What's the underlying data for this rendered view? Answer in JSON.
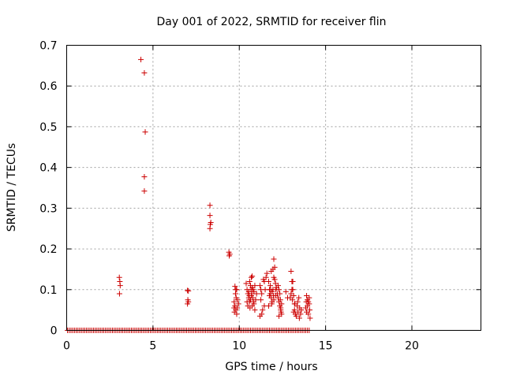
{
  "chart_data": {
    "type": "scatter",
    "title": "Day 001 of 2022, SRMTID for receiver flin",
    "xlabel": "GPS time / hours",
    "ylabel": "SRMTID / TECUs",
    "xlim": [
      0,
      24
    ],
    "ylim": [
      0,
      0.7
    ],
    "xticks": [
      0,
      5,
      10,
      15,
      20
    ],
    "yticks": [
      0,
      0.1,
      0.2,
      0.3,
      0.4,
      0.5,
      0.6,
      0.7
    ],
    "xtick_labels": [
      "0",
      "5",
      "10",
      "15",
      "20"
    ],
    "ytick_labels": [
      "0",
      "0.1",
      "0.2",
      "0.3",
      "0.4",
      "0.5",
      "0.6",
      "0.7"
    ],
    "grid": true,
    "marker": "+",
    "series": [
      {
        "name": "SRMTID",
        "color": "#cc0000",
        "zero_baseline": {
          "x_start": 0.05,
          "x_end": 14.1,
          "step": 0.1,
          "y": 0
        },
        "points": [
          [
            3.05,
            0.13
          ],
          [
            3.08,
            0.12
          ],
          [
            3.1,
            0.11
          ],
          [
            3.06,
            0.09
          ],
          [
            4.3,
            0.665
          ],
          [
            4.5,
            0.632
          ],
          [
            4.55,
            0.487
          ],
          [
            4.5,
            0.377
          ],
          [
            4.5,
            0.342
          ],
          [
            7.0,
            0.098
          ],
          [
            7.05,
            0.097
          ],
          [
            7.02,
            0.075
          ],
          [
            7.05,
            0.07
          ],
          [
            7.0,
            0.065
          ],
          [
            8.3,
            0.307
          ],
          [
            8.3,
            0.282
          ],
          [
            8.35,
            0.265
          ],
          [
            8.32,
            0.26
          ],
          [
            8.3,
            0.25
          ],
          [
            9.4,
            0.192
          ],
          [
            9.45,
            0.187
          ],
          [
            9.42,
            0.183
          ],
          [
            9.75,
            0.108
          ],
          [
            9.8,
            0.1
          ],
          [
            9.78,
            0.09
          ],
          [
            9.82,
            0.08
          ],
          [
            9.85,
            0.1
          ],
          [
            9.7,
            0.07
          ],
          [
            9.75,
            0.06
          ],
          [
            9.8,
            0.05
          ],
          [
            9.72,
            0.045
          ],
          [
            9.85,
            0.04
          ],
          [
            9.9,
            0.075
          ],
          [
            9.95,
            0.065
          ],
          [
            9.7,
            0.055
          ],
          [
            9.88,
            0.055
          ],
          [
            10.4,
            0.115
          ],
          [
            10.45,
            0.1
          ],
          [
            10.5,
            0.09
          ],
          [
            10.55,
            0.08
          ],
          [
            10.6,
            0.07
          ],
          [
            10.65,
            0.11
          ],
          [
            10.7,
            0.085
          ],
          [
            10.75,
            0.06
          ],
          [
            10.8,
            0.1
          ],
          [
            10.85,
            0.095
          ],
          [
            10.9,
            0.05
          ],
          [
            10.5,
            0.06
          ],
          [
            10.55,
            0.095
          ],
          [
            10.6,
            0.12
          ],
          [
            10.7,
            0.13
          ],
          [
            10.75,
            0.105
          ],
          [
            10.95,
            0.075
          ],
          [
            11.0,
            0.09
          ],
          [
            10.45,
            0.07
          ],
          [
            10.85,
            0.065
          ],
          [
            10.65,
            0.075
          ],
          [
            10.72,
            0.09
          ],
          [
            10.78,
            0.08
          ],
          [
            10.58,
            0.085
          ],
          [
            10.82,
            0.07
          ],
          [
            10.9,
            0.11
          ],
          [
            10.62,
            0.055
          ],
          [
            10.68,
            0.1
          ],
          [
            10.75,
            0.133
          ],
          [
            11.2,
            0.11
          ],
          [
            11.25,
            0.1
          ],
          [
            11.3,
            0.09
          ],
          [
            11.35,
            0.05
          ],
          [
            11.2,
            0.035
          ],
          [
            11.3,
            0.04
          ],
          [
            11.4,
            0.125
          ],
          [
            11.45,
            0.12
          ],
          [
            11.5,
            0.1
          ],
          [
            11.55,
            0.13
          ],
          [
            11.6,
            0.14
          ],
          [
            11.25,
            0.075
          ],
          [
            11.45,
            0.06
          ],
          [
            11.7,
            0.12
          ],
          [
            11.75,
            0.1
          ],
          [
            11.8,
            0.09
          ],
          [
            11.85,
            0.08
          ],
          [
            11.9,
            0.07
          ],
          [
            11.95,
            0.15
          ],
          [
            12.0,
            0.175
          ],
          [
            12.05,
            0.155
          ],
          [
            11.7,
            0.06
          ],
          [
            11.8,
            0.11
          ],
          [
            11.9,
            0.095
          ],
          [
            12.0,
            0.13
          ],
          [
            12.05,
            0.125
          ],
          [
            12.1,
            0.115
          ],
          [
            12.15,
            0.105
          ],
          [
            12.2,
            0.09
          ],
          [
            11.85,
            0.145
          ],
          [
            11.95,
            0.1
          ],
          [
            12.1,
            0.085
          ],
          [
            12.0,
            0.075
          ],
          [
            11.75,
            0.085
          ],
          [
            11.88,
            0.065
          ],
          [
            12.12,
            0.1
          ],
          [
            11.82,
            0.1
          ],
          [
            11.98,
            0.085
          ],
          [
            12.25,
            0.08
          ],
          [
            12.3,
            0.07
          ],
          [
            12.35,
            0.06
          ],
          [
            12.4,
            0.05
          ],
          [
            12.45,
            0.04
          ],
          [
            12.3,
            0.1
          ],
          [
            12.35,
            0.09
          ],
          [
            12.4,
            0.055
          ],
          [
            12.3,
            0.035
          ],
          [
            12.45,
            0.065
          ],
          [
            12.25,
            0.11
          ],
          [
            12.38,
            0.075
          ],
          [
            12.42,
            0.045
          ],
          [
            12.7,
            0.095
          ],
          [
            12.8,
            0.08
          ],
          [
            13.0,
            0.145
          ],
          [
            13.05,
            0.12
          ],
          [
            13.1,
            0.1
          ],
          [
            13.15,
            0.085
          ],
          [
            13.2,
            0.065
          ],
          [
            13.0,
            0.09
          ],
          [
            13.1,
            0.12
          ],
          [
            13.05,
            0.1
          ],
          [
            12.95,
            0.08
          ],
          [
            13.08,
            0.075
          ],
          [
            13.2,
            0.05
          ],
          [
            13.25,
            0.04
          ],
          [
            13.3,
            0.035
          ],
          [
            13.15,
            0.045
          ],
          [
            13.35,
            0.06
          ],
          [
            13.4,
            0.045
          ],
          [
            13.45,
            0.08
          ],
          [
            13.5,
            0.055
          ],
          [
            13.55,
            0.04
          ],
          [
            13.6,
            0.05
          ],
          [
            13.22,
            0.065
          ],
          [
            13.38,
            0.07
          ],
          [
            13.48,
            0.03
          ],
          [
            13.9,
            0.085
          ],
          [
            13.95,
            0.075
          ],
          [
            14.0,
            0.07
          ],
          [
            14.05,
            0.065
          ],
          [
            13.85,
            0.055
          ],
          [
            13.9,
            0.045
          ],
          [
            14.0,
            0.04
          ],
          [
            14.1,
            0.03
          ],
          [
            13.95,
            0.06
          ],
          [
            14.05,
            0.08
          ],
          [
            13.88,
            0.07
          ],
          [
            14.08,
            0.05
          ]
        ]
      }
    ]
  }
}
